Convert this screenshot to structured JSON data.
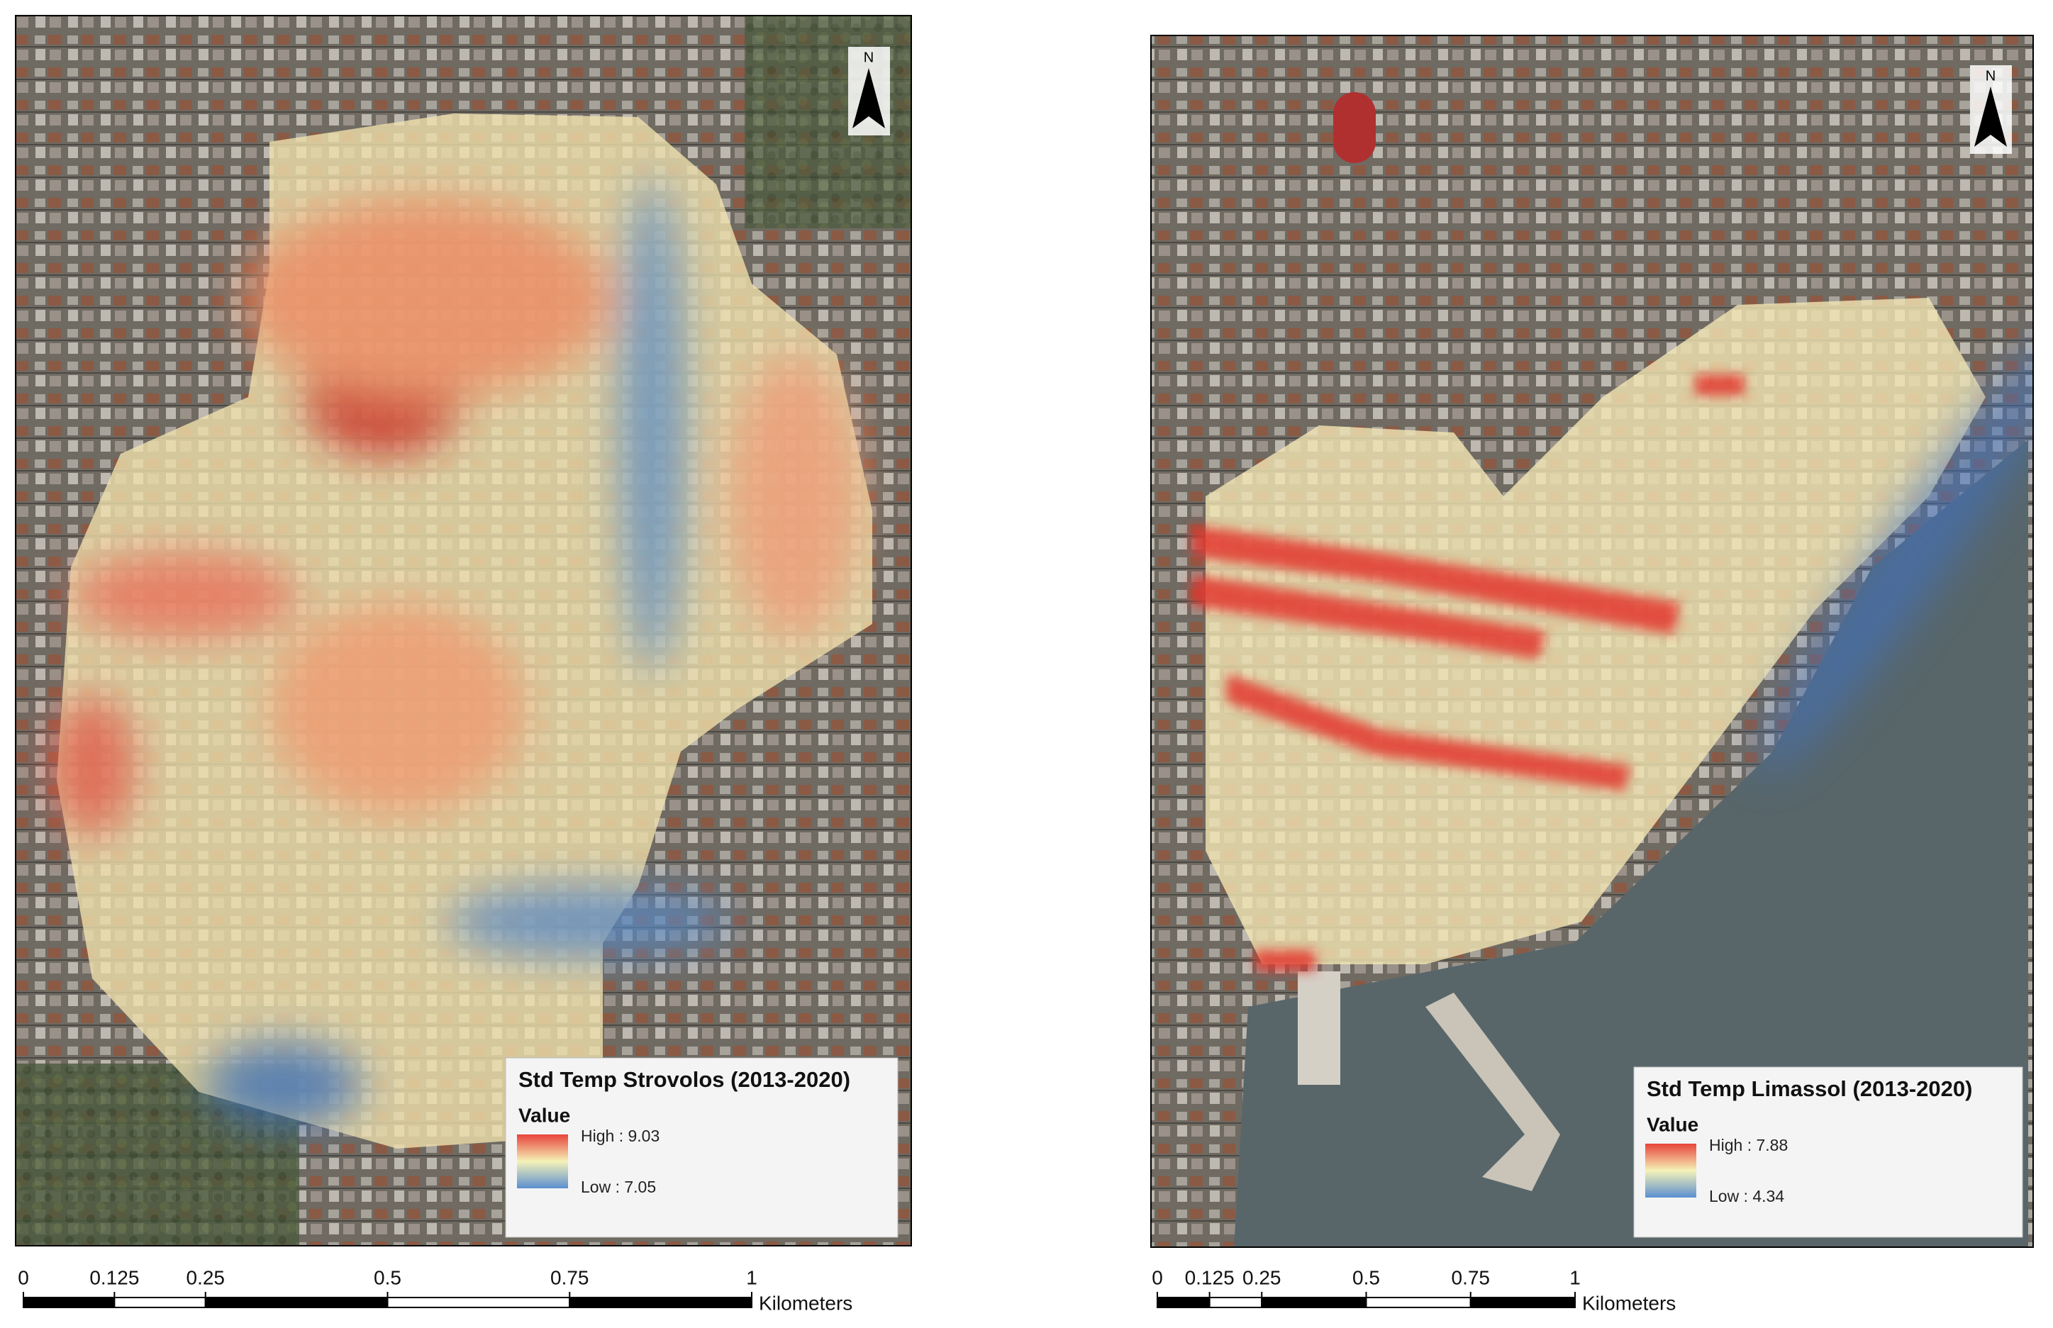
{
  "panels": [
    {
      "legend": {
        "title": "Std Temp Strovolos (2013-2020)",
        "field": "Value",
        "high": "High : 9.03",
        "low": "Low : 7.05"
      },
      "north": "N",
      "scale_bar": {
        "ticks": [
          0,
          0.125,
          0.25,
          0.5,
          0.75,
          1
        ],
        "unit": "Kilometers"
      }
    },
    {
      "legend": {
        "title": "Std Temp Limassol (2013-2020)",
        "field": "Value",
        "high": "High : 7.88",
        "low": "Low : 4.34"
      },
      "north": "N",
      "scale_bar": {
        "ticks": [
          0,
          0.125,
          0.25,
          0.5,
          0.75,
          1
        ],
        "unit": "Kilometers"
      }
    }
  ]
}
